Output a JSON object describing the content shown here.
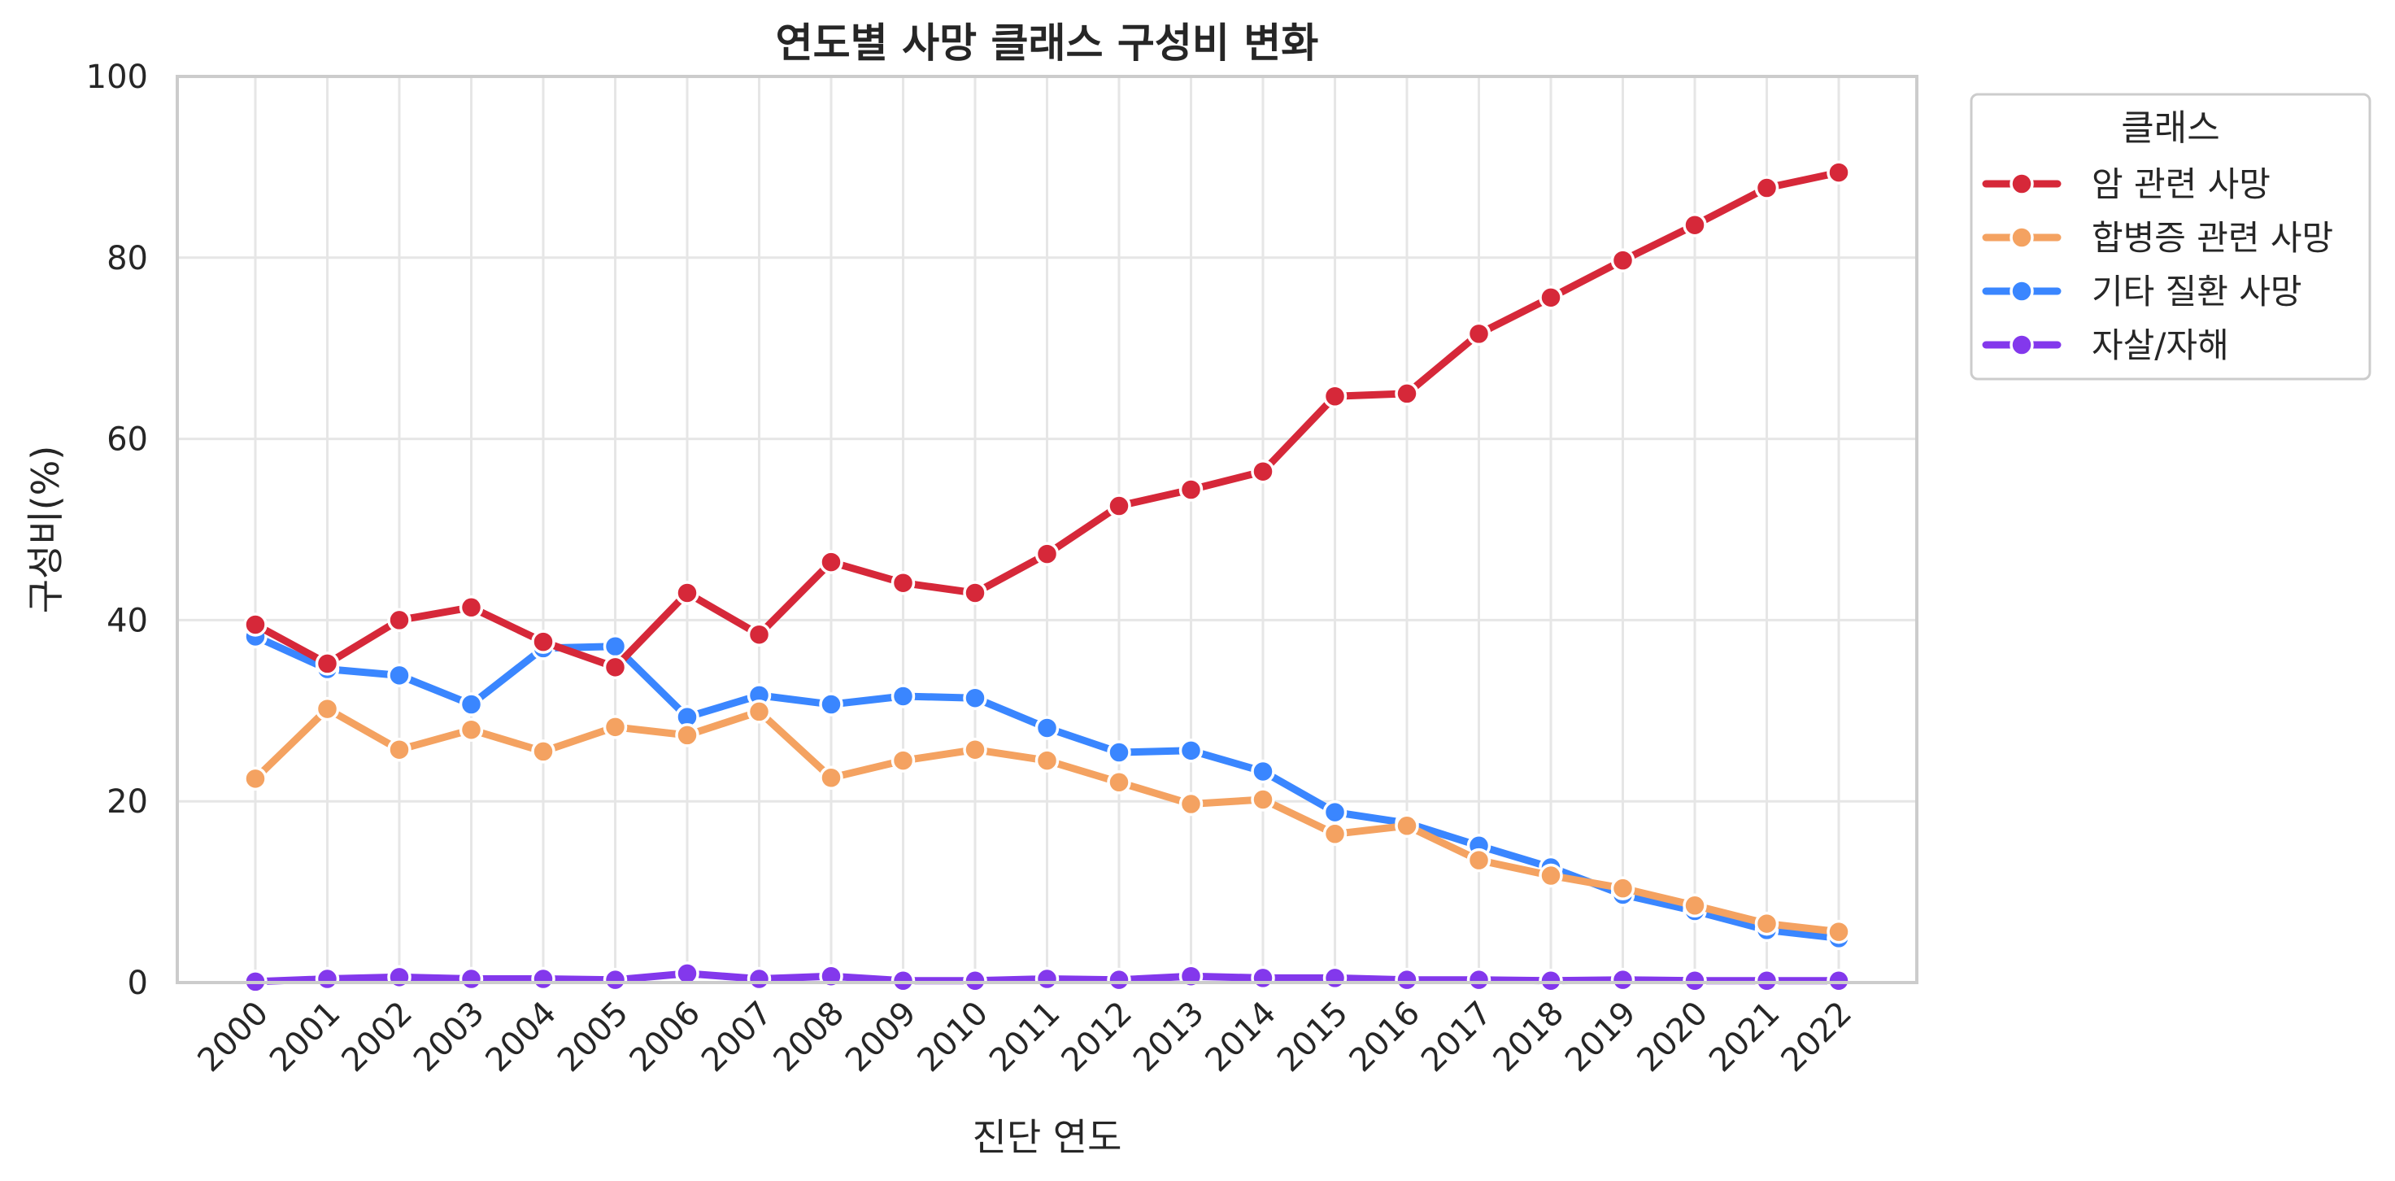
{
  "chart_data": {
    "type": "line",
    "title": "연도별 사망 클래스 구성비 변화",
    "xlabel": "진단 연도",
    "ylabel": "구성비(%)",
    "ylim": [
      0,
      100
    ],
    "yticks": [
      "0",
      "20",
      "40",
      "60",
      "80",
      "100"
    ],
    "grid": true,
    "legend_title": "클래스",
    "legend_position": "outside-top-right",
    "x": [
      "2000",
      "2001",
      "2002",
      "2003",
      "2004",
      "2005",
      "2006",
      "2007",
      "2008",
      "2009",
      "2010",
      "2011",
      "2012",
      "2013",
      "2014",
      "2015",
      "2016",
      "2017",
      "2018",
      "2019",
      "2020",
      "2021",
      "2022"
    ],
    "series": [
      {
        "name": "암 관련 사망",
        "color": "#d62839",
        "values": [
          39.5,
          35.2,
          40.0,
          41.4,
          37.6,
          34.8,
          43.0,
          38.4,
          46.4,
          44.1,
          43.0,
          47.3,
          52.6,
          54.4,
          56.4,
          64.7,
          65.0,
          71.6,
          75.6,
          79.7,
          83.6,
          87.7,
          89.4
        ]
      },
      {
        "name": "합병증 관련 사망",
        "color": "#f4a261",
        "values": [
          22.5,
          30.2,
          25.7,
          27.9,
          25.5,
          28.2,
          27.3,
          29.9,
          22.6,
          24.5,
          25.7,
          24.5,
          22.1,
          19.7,
          20.2,
          16.4,
          17.3,
          13.5,
          11.8,
          10.4,
          8.5,
          6.5,
          5.6
        ]
      },
      {
        "name": "기타 질환 사망",
        "color": "#3a86ff",
        "values": [
          38.2,
          34.6,
          33.9,
          30.7,
          36.9,
          37.1,
          29.3,
          31.7,
          30.7,
          31.6,
          31.4,
          28.1,
          25.4,
          25.6,
          23.3,
          18.8,
          17.6,
          15.1,
          12.7,
          9.7,
          7.9,
          5.8,
          4.9
        ]
      },
      {
        "name": "자살/자해",
        "color": "#8338ec",
        "values": [
          0.1,
          0.4,
          0.6,
          0.4,
          0.4,
          0.3,
          1.0,
          0.4,
          0.7,
          0.2,
          0.2,
          0.4,
          0.3,
          0.7,
          0.5,
          0.5,
          0.3,
          0.3,
          0.2,
          0.3,
          0.2,
          0.2,
          0.2
        ]
      }
    ]
  }
}
